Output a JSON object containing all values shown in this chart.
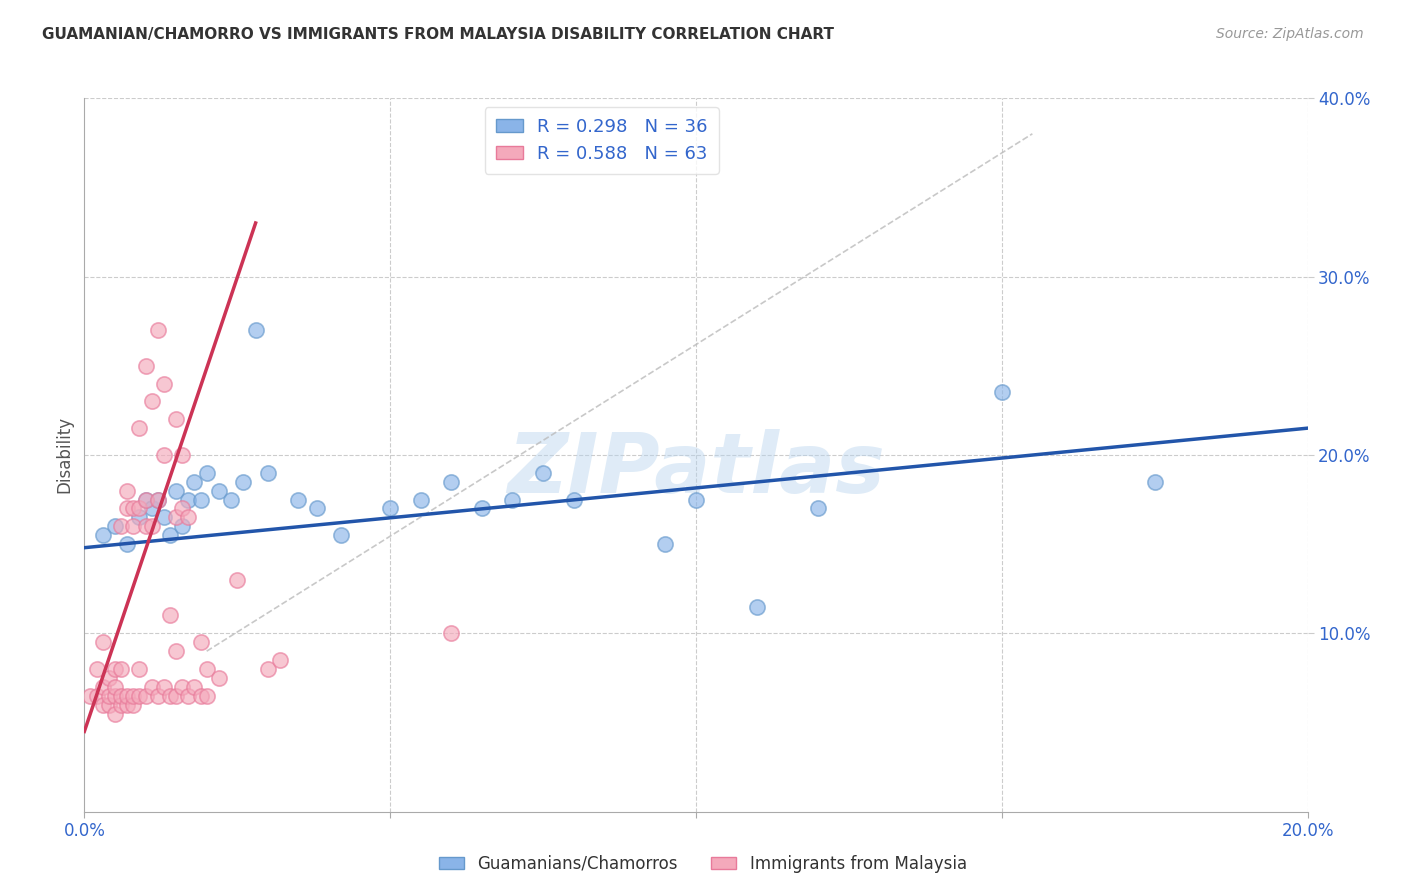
{
  "title": "GUAMANIAN/CHAMORRO VS IMMIGRANTS FROM MALAYSIA DISABILITY CORRELATION CHART",
  "source": "Source: ZipAtlas.com",
  "ylabel": "Disability",
  "xlim": [
    0.0,
    0.2
  ],
  "ylim": [
    0.0,
    0.4
  ],
  "blue_R": 0.298,
  "blue_N": 36,
  "pink_R": 0.588,
  "pink_N": 63,
  "legend_label_blue": "Guamanians/Chamorros",
  "legend_label_pink": "Immigrants from Malaysia",
  "blue_color": "#8ab4e8",
  "blue_edge": "#6699CC",
  "pink_color": "#f4a9bb",
  "pink_edge": "#e87a9a",
  "blue_line_color": "#2255AA",
  "pink_line_color": "#CC3355",
  "diag_color": "#BBBBBB",
  "blue_scatter": [
    [
      0.003,
      0.155
    ],
    [
      0.005,
      0.16
    ],
    [
      0.007,
      0.15
    ],
    [
      0.009,
      0.165
    ],
    [
      0.01,
      0.175
    ],
    [
      0.011,
      0.17
    ],
    [
      0.012,
      0.175
    ],
    [
      0.013,
      0.165
    ],
    [
      0.014,
      0.155
    ],
    [
      0.015,
      0.18
    ],
    [
      0.016,
      0.16
    ],
    [
      0.017,
      0.175
    ],
    [
      0.018,
      0.185
    ],
    [
      0.019,
      0.175
    ],
    [
      0.02,
      0.19
    ],
    [
      0.022,
      0.18
    ],
    [
      0.024,
      0.175
    ],
    [
      0.026,
      0.185
    ],
    [
      0.028,
      0.27
    ],
    [
      0.03,
      0.19
    ],
    [
      0.035,
      0.175
    ],
    [
      0.038,
      0.17
    ],
    [
      0.042,
      0.155
    ],
    [
      0.05,
      0.17
    ],
    [
      0.055,
      0.175
    ],
    [
      0.06,
      0.185
    ],
    [
      0.065,
      0.17
    ],
    [
      0.07,
      0.175
    ],
    [
      0.075,
      0.19
    ],
    [
      0.08,
      0.175
    ],
    [
      0.095,
      0.15
    ],
    [
      0.1,
      0.175
    ],
    [
      0.11,
      0.115
    ],
    [
      0.12,
      0.17
    ],
    [
      0.15,
      0.235
    ],
    [
      0.175,
      0.185
    ]
  ],
  "pink_scatter": [
    [
      0.001,
      0.065
    ],
    [
      0.002,
      0.065
    ],
    [
      0.002,
      0.08
    ],
    [
      0.003,
      0.06
    ],
    [
      0.003,
      0.07
    ],
    [
      0.003,
      0.095
    ],
    [
      0.004,
      0.06
    ],
    [
      0.004,
      0.065
    ],
    [
      0.004,
      0.075
    ],
    [
      0.005,
      0.055
    ],
    [
      0.005,
      0.065
    ],
    [
      0.005,
      0.07
    ],
    [
      0.005,
      0.08
    ],
    [
      0.006,
      0.06
    ],
    [
      0.006,
      0.065
    ],
    [
      0.006,
      0.08
    ],
    [
      0.006,
      0.16
    ],
    [
      0.007,
      0.06
    ],
    [
      0.007,
      0.065
    ],
    [
      0.007,
      0.17
    ],
    [
      0.007,
      0.18
    ],
    [
      0.008,
      0.06
    ],
    [
      0.008,
      0.065
    ],
    [
      0.008,
      0.16
    ],
    [
      0.008,
      0.17
    ],
    [
      0.009,
      0.065
    ],
    [
      0.009,
      0.08
    ],
    [
      0.009,
      0.17
    ],
    [
      0.009,
      0.215
    ],
    [
      0.01,
      0.065
    ],
    [
      0.01,
      0.16
    ],
    [
      0.01,
      0.175
    ],
    [
      0.01,
      0.25
    ],
    [
      0.011,
      0.07
    ],
    [
      0.011,
      0.16
    ],
    [
      0.011,
      0.23
    ],
    [
      0.012,
      0.065
    ],
    [
      0.012,
      0.175
    ],
    [
      0.012,
      0.27
    ],
    [
      0.013,
      0.07
    ],
    [
      0.013,
      0.2
    ],
    [
      0.013,
      0.24
    ],
    [
      0.014,
      0.065
    ],
    [
      0.014,
      0.11
    ],
    [
      0.015,
      0.065
    ],
    [
      0.015,
      0.09
    ],
    [
      0.015,
      0.165
    ],
    [
      0.015,
      0.22
    ],
    [
      0.016,
      0.07
    ],
    [
      0.016,
      0.17
    ],
    [
      0.016,
      0.2
    ],
    [
      0.017,
      0.065
    ],
    [
      0.017,
      0.165
    ],
    [
      0.018,
      0.07
    ],
    [
      0.019,
      0.065
    ],
    [
      0.019,
      0.095
    ],
    [
      0.02,
      0.065
    ],
    [
      0.02,
      0.08
    ],
    [
      0.022,
      0.075
    ],
    [
      0.025,
      0.13
    ],
    [
      0.03,
      0.08
    ],
    [
      0.032,
      0.085
    ],
    [
      0.06,
      0.1
    ]
  ],
  "blue_line": [
    [
      0.0,
      0.148
    ],
    [
      0.2,
      0.215
    ]
  ],
  "pink_line": [
    [
      0.0,
      0.045
    ],
    [
      0.028,
      0.33
    ]
  ],
  "diag_line": [
    [
      0.02,
      0.09
    ],
    [
      0.155,
      0.38
    ]
  ],
  "watermark": "ZIPatlas",
  "background_color": "#ffffff",
  "grid_color": "#cccccc"
}
